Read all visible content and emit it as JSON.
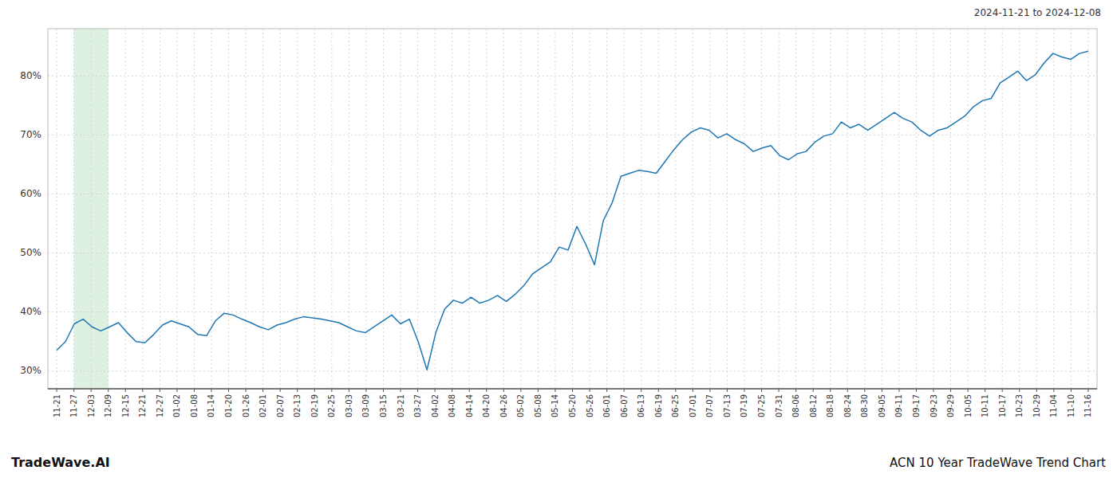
{
  "chart_data": {
    "type": "line",
    "title": "ACN 10 Year TradeWave Trend Chart",
    "subtitle": "2024-11-21 to 2024-12-08",
    "annotations": [
      "TradeWave.AI"
    ],
    "color": "#1f77b4",
    "background_color": "#ffffff",
    "grid_color": "#cccccc",
    "grid": true,
    "highlight": {
      "start": "11-27",
      "end": "12-09",
      "color": "#c8e6c9"
    },
    "ylim": [
      27,
      88
    ],
    "yticks": [
      {
        "value": 30,
        "label": "30%"
      },
      {
        "value": 40,
        "label": "40%"
      },
      {
        "value": 50,
        "label": "50%"
      },
      {
        "value": 60,
        "label": "60%"
      },
      {
        "value": 70,
        "label": "70%"
      },
      {
        "value": 80,
        "label": "80%"
      }
    ],
    "xticks": [
      "11-21",
      "11-27",
      "12-03",
      "12-09",
      "12-15",
      "12-21",
      "12-27",
      "01-02",
      "01-08",
      "01-14",
      "01-20",
      "01-26",
      "02-01",
      "02-07",
      "02-13",
      "02-19",
      "02-25",
      "03-03",
      "03-09",
      "03-15",
      "03-21",
      "03-27",
      "04-02",
      "04-08",
      "04-14",
      "04-20",
      "04-26",
      "05-02",
      "05-08",
      "05-14",
      "05-20",
      "05-26",
      "06-01",
      "06-07",
      "06-13",
      "06-19",
      "06-25",
      "07-01",
      "07-07",
      "07-13",
      "07-19",
      "07-25",
      "07-31",
      "08-06",
      "08-12",
      "08-18",
      "08-24",
      "08-30",
      "09-05",
      "09-11",
      "09-17",
      "09-23",
      "09-29",
      "10-05",
      "10-11",
      "10-17",
      "10-23",
      "10-29",
      "11-04",
      "11-10",
      "11-16"
    ],
    "values": [
      33.5,
      35.0,
      38.0,
      38.8,
      37.5,
      36.8,
      37.5,
      38.2,
      36.5,
      35.0,
      34.8,
      36.2,
      37.8,
      38.5,
      38.0,
      37.5,
      36.2,
      36.0,
      38.5,
      39.8,
      39.5,
      38.8,
      38.2,
      37.5,
      37.0,
      37.8,
      38.2,
      38.8,
      39.2,
      39.0,
      38.8,
      38.5,
      38.2,
      37.5,
      36.8,
      36.5,
      37.5,
      38.5,
      39.5,
      38.0,
      38.8,
      35.0,
      30.2,
      36.5,
      40.5,
      42.0,
      41.5,
      42.5,
      41.5,
      42.0,
      42.8,
      41.8,
      43.0,
      44.5,
      46.5,
      47.5,
      48.5,
      51.0,
      50.5,
      54.5,
      51.5,
      48.0,
      55.5,
      58.5,
      63.0,
      63.5,
      64.0,
      63.8,
      63.5,
      65.5,
      67.5,
      69.2,
      70.5,
      71.2,
      70.8,
      69.5,
      70.2,
      69.2,
      68.5,
      67.2,
      67.8,
      68.2,
      66.5,
      65.8,
      66.8,
      67.2,
      68.8,
      69.8,
      70.2,
      72.2,
      71.2,
      71.8,
      70.8,
      71.8,
      72.8,
      73.8,
      72.8,
      72.2,
      70.8,
      69.8,
      70.8,
      71.2,
      72.2,
      73.2,
      74.8,
      75.8,
      76.2,
      78.8,
      79.8,
      80.8,
      79.2,
      80.2,
      82.2,
      83.8,
      83.2,
      82.8,
      83.8,
      84.2
    ]
  }
}
